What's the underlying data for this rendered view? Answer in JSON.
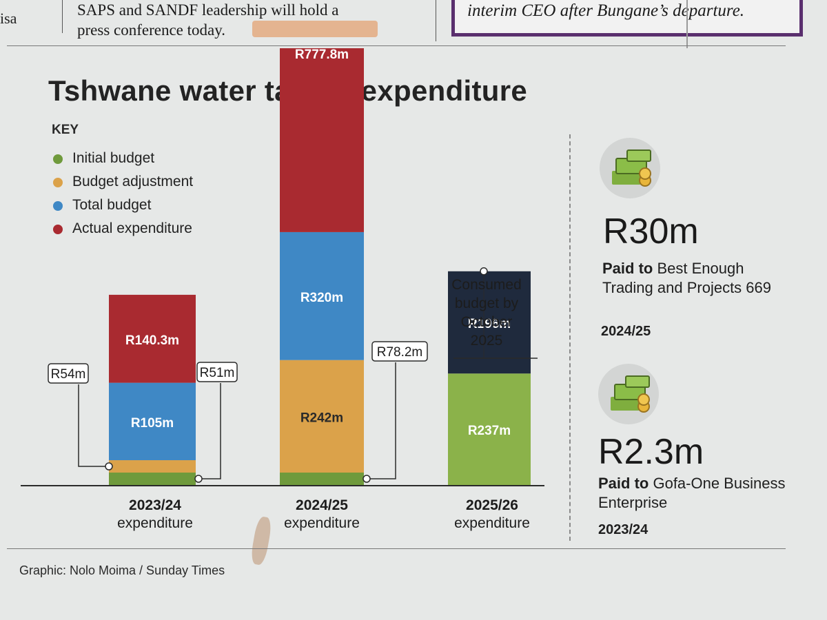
{
  "header": {
    "left_fragment": "isa",
    "story_lines": [
      "SAPS and SANDF leadership will hold a",
      "press conference today."
    ],
    "box_text": "interim CEO after Bungane’s departure."
  },
  "title": "Tshwane water tanker expenditure",
  "key": {
    "title": "KEY",
    "items": [
      {
        "label": "Initial budget",
        "color": "#6f9a3c"
      },
      {
        "label": "Budget adjustment",
        "color": "#dba24a"
      },
      {
        "label": "Total budget",
        "color": "#3f88c5"
      },
      {
        "label": "Actual expenditure",
        "color": "#a92a30"
      }
    ]
  },
  "chart_data": {
    "type": "bar",
    "stacked": true,
    "categories": [
      "2023/24 expenditure",
      "2024/25 expenditure",
      "2025/26 expenditure"
    ],
    "category_lines": [
      [
        "2023/24",
        "expenditure"
      ],
      [
        "2024/25",
        "expenditure"
      ],
      [
        "2025/26",
        "expenditure"
      ]
    ],
    "segments": [
      [
        {
          "series": "Initial budget",
          "value": 51,
          "label": "R51m",
          "callout": "right",
          "color": "#6f9a3c"
        },
        {
          "series": "Budget adjustment",
          "value": 54,
          "label": "R54m",
          "callout": "left",
          "color": "#dba24a"
        },
        {
          "series": "Total budget",
          "value": 105,
          "label": "R105m",
          "color": "#3f88c5"
        },
        {
          "series": "Actual expenditure",
          "value": 140.3,
          "label": "R140.3m",
          "color": "#a92a30"
        }
      ],
      [
        {
          "series": "Initial budget",
          "value": 78.2,
          "label": "R78.2m",
          "callout": "right",
          "color": "#6f9a3c"
        },
        {
          "series": "Budget adjustment",
          "value": 242,
          "label": "R242m",
          "color": "#dba24a"
        },
        {
          "series": "Total budget",
          "value": 320,
          "label": "R320m",
          "color": "#3f88c5"
        },
        {
          "series": "Actual expenditure",
          "value": 777.8,
          "label": "R777.8m",
          "color": "#a92a30"
        }
      ],
      [
        {
          "series": "Total budget",
          "value": 237,
          "label": "R237m",
          "color": "#8bb24a"
        },
        {
          "series": "Consumed budget by October 2025",
          "value": 196,
          "label": "R196m",
          "color": "#1f2a3d"
        }
      ]
    ],
    "annotation": {
      "lines": [
        "Consumed",
        "budget by",
        "October",
        "2025"
      ],
      "category": "2025/26 expenditure",
      "series": "Consumed budget by October 2025"
    }
  },
  "side_panel": [
    {
      "amount": "R30m",
      "paid_to_label": "Paid to",
      "recipient": "Best Enough Trading and Projects 669",
      "year": "2024/25",
      "icon": "money-stack-icon"
    },
    {
      "amount": "R2.3m",
      "paid_to_label": "Paid to",
      "recipient": "Gofa-One Business Enterprise",
      "year": "2023/24",
      "icon": "money-stack-icon"
    }
  ],
  "credit": "Graphic: Nolo Moima / Sunday Times"
}
